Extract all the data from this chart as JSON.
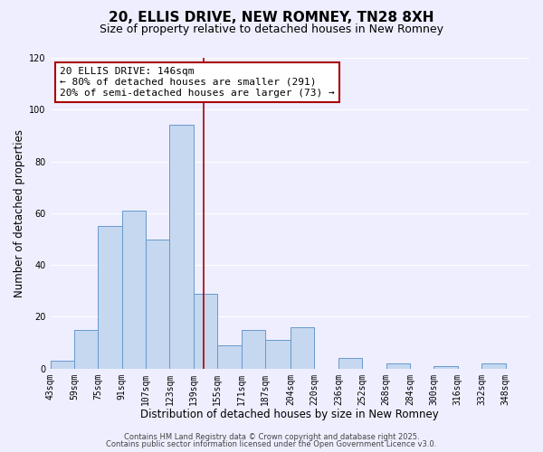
{
  "title": "20, ELLIS DRIVE, NEW ROMNEY, TN28 8XH",
  "subtitle": "Size of property relative to detached houses in New Romney",
  "xlabel": "Distribution of detached houses by size in New Romney",
  "ylabel": "Number of detached properties",
  "bin_edges": [
    43,
    59,
    75,
    91,
    107,
    123,
    139,
    155,
    171,
    187,
    204,
    220,
    236,
    252,
    268,
    284,
    300,
    316,
    332,
    348,
    364
  ],
  "counts": [
    3,
    15,
    55,
    61,
    50,
    94,
    29,
    9,
    15,
    11,
    16,
    0,
    4,
    0,
    2,
    0,
    1,
    0,
    2,
    0
  ],
  "bar_facecolor": "#c5d8f0",
  "bar_edgecolor": "#6699cc",
  "bar_linewidth": 0.7,
  "vline_x": 146,
  "vline_color": "#aa0000",
  "vline_linewidth": 1.2,
  "ylim": [
    0,
    120
  ],
  "yticks": [
    0,
    20,
    40,
    60,
    80,
    100,
    120
  ],
  "background_color": "#eeeeff",
  "grid_color": "#ffffff",
  "annotation_title": "20 ELLIS DRIVE: 146sqm",
  "annotation_line1": "← 80% of detached houses are smaller (291)",
  "annotation_line2": "20% of semi-detached houses are larger (73) →",
  "annotation_box_edgecolor": "#aa0000",
  "footer_line1": "Contains HM Land Registry data © Crown copyright and database right 2025.",
  "footer_line2": "Contains public sector information licensed under the Open Government Licence v3.0.",
  "title_fontsize": 11,
  "subtitle_fontsize": 9,
  "axis_label_fontsize": 8.5,
  "tick_fontsize": 7,
  "annotation_fontsize": 8,
  "footer_fontsize": 6
}
